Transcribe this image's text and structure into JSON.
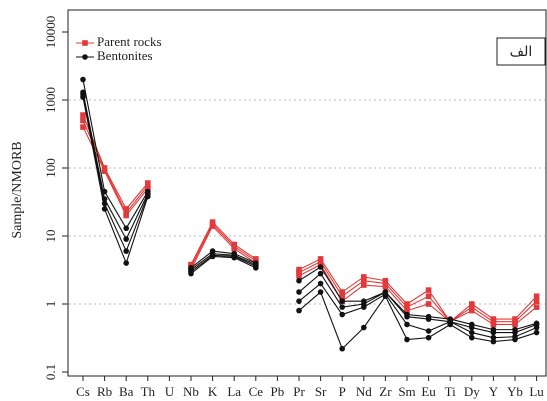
{
  "chart_data": {
    "type": "spider",
    "y_label": "Sample/NMORB",
    "log_scale": true,
    "grid": true,
    "legend": "top-left",
    "panel_label": "الف",
    "categories": [
      "Cs",
      "Rb",
      "Ba",
      "Th",
      "U",
      "Nb",
      "K",
      "La",
      "Ce",
      "Pb",
      "Pr",
      "Sr",
      "P",
      "Nd",
      "Zr",
      "Sm",
      "Eu",
      "Ti",
      "Dy",
      "Y",
      "Yb",
      "Lu"
    ],
    "ylim": [
      0.1,
      10000
    ],
    "yticks": [
      0.1,
      1,
      10,
      100,
      1000,
      10000
    ],
    "series": [
      {
        "name": "Parent rocks",
        "color": "#e23a3a",
        "marker": "square",
        "samples": [
          [
            400,
            90,
            20,
            50,
            null,
            3.2,
            14,
            6.5,
            4,
            null,
            2.6,
            3.8,
            1.1,
            1.9,
            1.8,
            0.8,
            1.0,
            0.55,
            0.8,
            0.5,
            0.5,
            0.9
          ],
          [
            500,
            95,
            22,
            55,
            null,
            3.5,
            15,
            7,
            4.3,
            null,
            2.9,
            4.2,
            1.3,
            2.2,
            2,
            0.9,
            1.3,
            0.55,
            0.9,
            0.55,
            0.55,
            1.1
          ],
          [
            600,
            100,
            25,
            60,
            null,
            3.8,
            16,
            7.5,
            4.6,
            null,
            3.2,
            4.6,
            1.5,
            2.5,
            2.2,
            1,
            1.6,
            0.55,
            1.0,
            0.6,
            0.6,
            1.3
          ]
        ]
      },
      {
        "name": "Bentonites",
        "color": "#111111",
        "marker": "circle",
        "samples": [
          [
            1100,
            25,
            4,
            38,
            null,
            2.8,
            5,
            4.8,
            3.4,
            null,
            0.8,
            1.5,
            0.22,
            0.45,
            1.3,
            0.3,
            0.32,
            0.5,
            0.32,
            0.28,
            0.3,
            0.38
          ],
          [
            1200,
            30,
            6,
            40,
            null,
            3.0,
            5.2,
            5,
            3.6,
            null,
            1.1,
            2.0,
            0.7,
            0.9,
            1.4,
            0.5,
            0.4,
            0.55,
            0.38,
            0.32,
            0.33,
            0.45
          ],
          [
            1300,
            35,
            9,
            42,
            null,
            3.2,
            5.5,
            5.2,
            3.8,
            null,
            1.5,
            2.8,
            0.9,
            1.0,
            1.5,
            0.65,
            0.6,
            0.55,
            0.45,
            0.38,
            0.38,
            0.5
          ],
          [
            2000,
            45,
            13,
            45,
            null,
            3.4,
            6,
            5.5,
            4,
            null,
            2.2,
            3.5,
            1.1,
            1.1,
            1.5,
            0.7,
            0.65,
            0.6,
            0.5,
            0.42,
            0.42,
            0.52
          ]
        ]
      }
    ]
  }
}
